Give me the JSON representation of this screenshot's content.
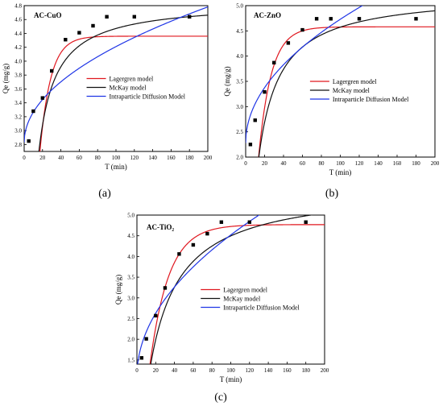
{
  "chart_data": [
    {
      "type": "scatter",
      "panel_label": "(a)",
      "title": "AC-CuO",
      "xlabel": "T (min)",
      "ylabel": "Qe (mg/g)",
      "xlim": [
        0,
        200
      ],
      "ylim": [
        2.7,
        4.8
      ],
      "xticks": [
        "0",
        "20",
        "40",
        "60",
        "80",
        "100",
        "120",
        "140",
        "160",
        "180",
        "200"
      ],
      "yticks": [
        "2.8",
        "3.0",
        "3.2",
        "3.4",
        "3.6",
        "3.8",
        "4.0",
        "4.2",
        "4.4",
        "4.6",
        "4.8"
      ],
      "experimental_points": {
        "x": [
          5,
          10,
          20,
          30,
          45,
          60,
          75,
          90,
          120,
          180
        ],
        "y": [
          2.85,
          3.28,
          3.47,
          3.86,
          4.31,
          4.41,
          4.51,
          4.64,
          4.64,
          4.64
        ]
      },
      "legend": [
        "Lagergren model",
        "McKay model",
        "Intraparticle Diffusion Model"
      ],
      "legend_position": "center-right",
      "models": [
        {
          "name": "Lagergren model",
          "color": "#e0171f",
          "qe": 4.36,
          "k": 0.085,
          "t0": 5.8
        },
        {
          "name": "McKay model",
          "color": "#111111",
          "a": 4.86,
          "b": 8.2,
          "t0": 5.8
        },
        {
          "name": "Intraparticle Diffusion Model",
          "color": "#1f35e6",
          "c": 2.83,
          "k": 0.138
        }
      ]
    },
    {
      "type": "scatter",
      "panel_label": "(b)",
      "title": "AC-ZnO",
      "xlabel": "T (min)",
      "ylabel": "Qe (mg/g)",
      "xlim": [
        0,
        200
      ],
      "ylim": [
        2.0,
        5.0
      ],
      "xticks": [
        "0",
        "20",
        "40",
        "60",
        "80",
        "100",
        "120",
        "140",
        "160",
        "180",
        "200"
      ],
      "yticks": [
        "2.0",
        "2.5",
        "3.0",
        "3.5",
        "4.0",
        "4.5",
        "5.0"
      ],
      "experimental_points": {
        "x": [
          5,
          10,
          20,
          30,
          45,
          60,
          75,
          90,
          120,
          180
        ],
        "y": [
          2.25,
          2.73,
          3.29,
          3.87,
          4.26,
          4.52,
          4.74,
          4.74,
          4.74,
          4.74
        ]
      },
      "legend": [
        "Lagergren model",
        "McKay model",
        "Intraparticle Diffusion Model"
      ],
      "legend_position": "center-right",
      "models": [
        {
          "name": "Lagergren model",
          "color": "#e0171f",
          "qe": 4.58,
          "k": 0.075,
          "t0": 6.0
        },
        {
          "name": "McKay model",
          "color": "#111111",
          "a": 5.25,
          "b": 14.0,
          "t0": 5.3
        },
        {
          "name": "Intraparticle Diffusion Model",
          "color": "#1f35e6",
          "c": 2.28,
          "k": 0.245
        }
      ]
    },
    {
      "type": "scatter",
      "panel_label": "(c)",
      "title": "AC-TiO₂",
      "xlabel": "T (min)",
      "ylabel": "Qe (mg/g)",
      "xlim": [
        0,
        200
      ],
      "ylim": [
        1.4,
        5.0
      ],
      "xticks": [
        "0",
        "20",
        "40",
        "60",
        "80",
        "100",
        "120",
        "140",
        "160",
        "180",
        "200"
      ],
      "yticks": [
        "1.5",
        "2.0",
        "2.5",
        "3.0",
        "3.5",
        "4.0",
        "4.5",
        "5.0"
      ],
      "experimental_points": {
        "x": [
          5,
          10,
          20,
          30,
          45,
          60,
          75,
          90,
          120,
          180
        ],
        "y": [
          1.55,
          2.01,
          2.57,
          3.24,
          4.06,
          4.28,
          4.55,
          4.83,
          4.83,
          4.83
        ]
      },
      "legend": [
        "Lagergren model",
        "McKay model",
        "Intraparticle Diffusion Model"
      ],
      "legend_position": "center-right",
      "models": [
        {
          "name": "Lagergren model",
          "color": "#e0171f",
          "qe": 4.77,
          "k": 0.05,
          "t0": 7.0
        },
        {
          "name": "McKay model",
          "color": "#111111",
          "a": 5.7,
          "b": 25.0,
          "t0": 6.6
        },
        {
          "name": "Intraparticle Diffusion Model",
          "color": "#1f35e6",
          "c": 1.1,
          "k": 0.342
        }
      ]
    }
  ]
}
